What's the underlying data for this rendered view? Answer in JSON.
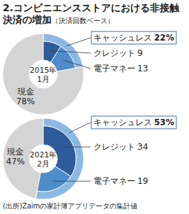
{
  "title": "2.コンビニエンスストアにおける非接触決済の増加",
  "subtitle": "（決済回数ベース）",
  "source": "(出所)Zaimの家計簿アプリデータの集計値",
  "chart_data": [
    {
      "type": "pie",
      "title": "2015年1月",
      "data_labels": true,
      "series": [
        {
          "categories": [
            "キャッシュレス",
            "現金"
          ],
          "values": [
            22,
            78
          ],
          "value_labels": [
            "22%",
            "78%"
          ],
          "colors": [
            "#8db8e2",
            "#d4d4d4"
          ]
        },
        {
          "categories": [
            "クレジット",
            "電子マネー"
          ],
          "values": [
            9,
            13
          ],
          "colors": [
            "#2e5c9a",
            "#4f8ccb"
          ]
        }
      ]
    },
    {
      "type": "pie",
      "title": "2021年2月",
      "data_labels": true,
      "series": [
        {
          "categories": [
            "キャッシュレス",
            "現金"
          ],
          "values": [
            53,
            47
          ],
          "value_labels": [
            "53%",
            "47%"
          ],
          "colors": [
            "#8db8e2",
            "#d4d4d4"
          ]
        },
        {
          "categories": [
            "クレジット",
            "電子マネー"
          ],
          "values": [
            34,
            19
          ],
          "colors": [
            "#2e5c9a",
            "#4f8ccb"
          ]
        }
      ]
    }
  ]
}
